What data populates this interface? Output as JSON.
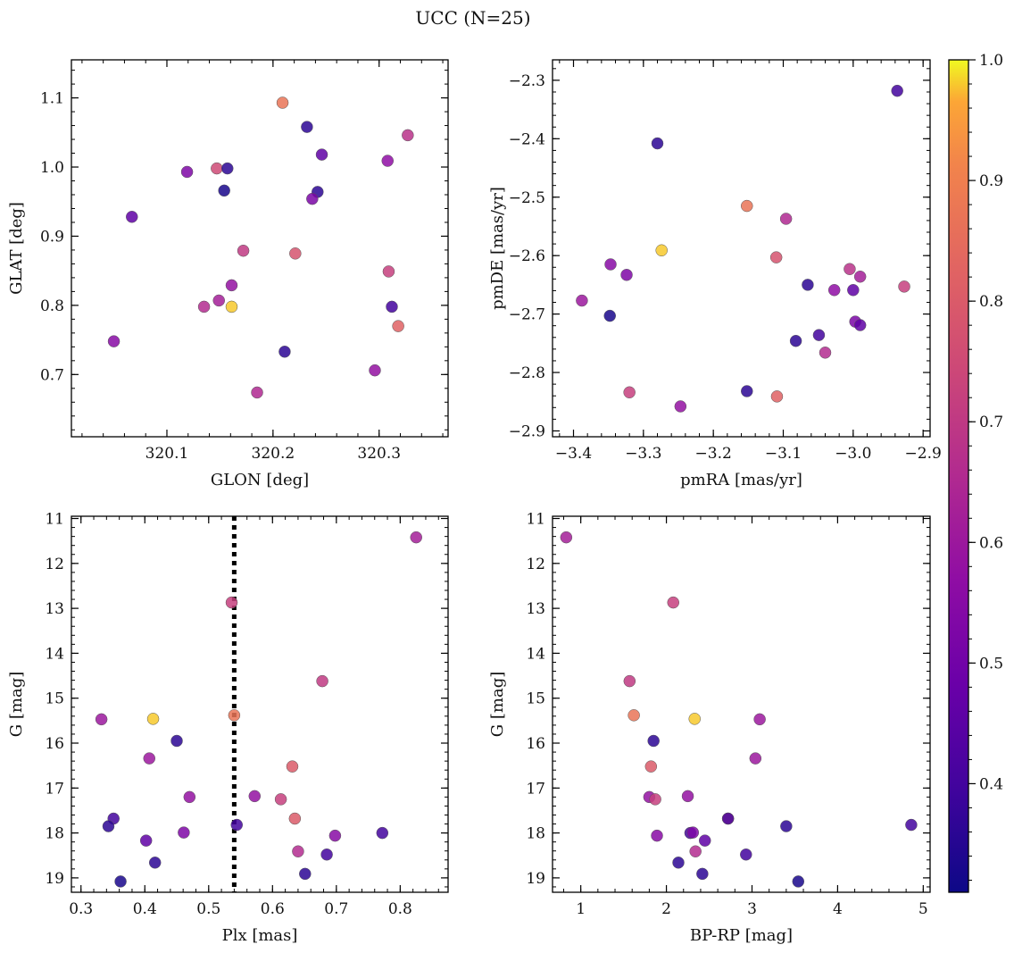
{
  "title": "UCC (N=25)",
  "chart_data": [
    {
      "type": "scatter",
      "xlabel": "GLON [deg]",
      "ylabel": "GLAT [deg]",
      "xlim": [
        320.01,
        320.365
      ],
      "ylim": [
        0.61,
        1.155
      ],
      "xticks": [
        320.1,
        320.2,
        320.3
      ],
      "xtick_labels": [
        "320.1",
        "320.2",
        "320.3"
      ],
      "yticks": [
        0.7,
        0.8,
        0.9,
        1.0,
        1.1
      ],
      "ytick_labels": [
        "0.7",
        "0.8",
        "0.9",
        "1.0",
        "1.1"
      ],
      "y_inverted": false,
      "points": [
        {
          "x": 320.209,
          "y": 1.093,
          "c": 0.87
        },
        {
          "x": 320.232,
          "y": 1.058,
          "c": 0.36
        },
        {
          "x": 320.327,
          "y": 1.046,
          "c": 0.68
        },
        {
          "x": 320.246,
          "y": 1.018,
          "c": 0.46
        },
        {
          "x": 320.308,
          "y": 1.009,
          "c": 0.57
        },
        {
          "x": 320.147,
          "y": 0.998,
          "c": 0.75
        },
        {
          "x": 320.157,
          "y": 0.998,
          "c": 0.36
        },
        {
          "x": 320.119,
          "y": 0.993,
          "c": 0.53
        },
        {
          "x": 320.154,
          "y": 0.966,
          "c": 0.33
        },
        {
          "x": 320.242,
          "y": 0.964,
          "c": 0.36
        },
        {
          "x": 320.237,
          "y": 0.954,
          "c": 0.52
        },
        {
          "x": 320.067,
          "y": 0.928,
          "c": 0.46
        },
        {
          "x": 320.172,
          "y": 0.879,
          "c": 0.7
        },
        {
          "x": 320.221,
          "y": 0.875,
          "c": 0.78
        },
        {
          "x": 320.309,
          "y": 0.849,
          "c": 0.72
        },
        {
          "x": 320.161,
          "y": 0.829,
          "c": 0.58
        },
        {
          "x": 320.149,
          "y": 0.807,
          "c": 0.62
        },
        {
          "x": 320.135,
          "y": 0.798,
          "c": 0.66
        },
        {
          "x": 320.161,
          "y": 0.798,
          "c": 0.98
        },
        {
          "x": 320.312,
          "y": 0.798,
          "c": 0.4
        },
        {
          "x": 320.318,
          "y": 0.77,
          "c": 0.82
        },
        {
          "x": 320.05,
          "y": 0.748,
          "c": 0.55
        },
        {
          "x": 320.211,
          "y": 0.733,
          "c": 0.36
        },
        {
          "x": 320.296,
          "y": 0.706,
          "c": 0.58
        },
        {
          "x": 320.185,
          "y": 0.674,
          "c": 0.65
        }
      ]
    },
    {
      "type": "scatter",
      "xlabel": "pmRA [mas/yr]",
      "ylabel": "pmDE [mas/yr]",
      "xlim": [
        -3.43,
        -2.89
      ],
      "ylim": [
        -2.91,
        -2.265
      ],
      "xticks": [
        -3.4,
        -3.3,
        -3.2,
        -3.1,
        -3.0,
        -2.9
      ],
      "xtick_labels": [
        "−3.4",
        "−3.3",
        "−3.2",
        "−3.1",
        "−3.0",
        "−2.9"
      ],
      "yticks": [
        -2.9,
        -2.8,
        -2.7,
        -2.6,
        -2.5,
        -2.4,
        -2.3
      ],
      "ytick_labels": [
        "−2.9",
        "−2.8",
        "−2.7",
        "−2.6",
        "−2.5",
        "−2.4",
        "−2.3"
      ],
      "y_inverted": false,
      "points": [
        {
          "x": -2.937,
          "y": -2.318,
          "c": 0.4
        },
        {
          "x": -3.28,
          "y": -2.408,
          "c": 0.36
        },
        {
          "x": -3.152,
          "y": -2.515,
          "c": 0.87
        },
        {
          "x": -3.096,
          "y": -2.537,
          "c": 0.65
        },
        {
          "x": -3.274,
          "y": -2.591,
          "c": 0.98
        },
        {
          "x": -3.11,
          "y": -2.603,
          "c": 0.78
        },
        {
          "x": -3.347,
          "y": -2.615,
          "c": 0.55
        },
        {
          "x": -3.005,
          "y": -2.623,
          "c": 0.68
        },
        {
          "x": -3.324,
          "y": -2.633,
          "c": 0.53
        },
        {
          "x": -2.99,
          "y": -2.636,
          "c": 0.62
        },
        {
          "x": -3.065,
          "y": -2.65,
          "c": 0.36
        },
        {
          "x": -2.927,
          "y": -2.653,
          "c": 0.72
        },
        {
          "x": -3.027,
          "y": -2.659,
          "c": 0.57
        },
        {
          "x": -3.0,
          "y": -2.659,
          "c": 0.46
        },
        {
          "x": -3.388,
          "y": -2.677,
          "c": 0.6
        },
        {
          "x": -3.348,
          "y": -2.703,
          "c": 0.33
        },
        {
          "x": -2.997,
          "y": -2.713,
          "c": 0.52
        },
        {
          "x": -2.99,
          "y": -2.719,
          "c": 0.46
        },
        {
          "x": -3.049,
          "y": -2.736,
          "c": 0.4
        },
        {
          "x": -3.082,
          "y": -2.746,
          "c": 0.36
        },
        {
          "x": -3.04,
          "y": -2.766,
          "c": 0.66
        },
        {
          "x": -3.32,
          "y": -2.834,
          "c": 0.72
        },
        {
          "x": -3.152,
          "y": -2.832,
          "c": 0.36
        },
        {
          "x": -3.109,
          "y": -2.841,
          "c": 0.82
        },
        {
          "x": -3.247,
          "y": -2.858,
          "c": 0.58
        }
      ]
    },
    {
      "type": "scatter",
      "xlabel": "Plx [mas]",
      "ylabel": "G [mag]",
      "xlim": [
        0.285,
        0.875
      ],
      "ylim": [
        10.95,
        19.32
      ],
      "xticks": [
        0.3,
        0.4,
        0.5,
        0.6,
        0.7,
        0.8
      ],
      "xtick_labels": [
        "0.3",
        "0.4",
        "0.5",
        "0.6",
        "0.7",
        "0.8"
      ],
      "yticks": [
        11,
        12,
        13,
        14,
        15,
        16,
        17,
        18,
        19
      ],
      "ytick_labels": [
        "11",
        "12",
        "13",
        "14",
        "15",
        "16",
        "17",
        "18",
        "19"
      ],
      "y_inverted": true,
      "vline": 0.54,
      "points": [
        {
          "x": 0.825,
          "y": 11.42,
          "c": 0.62
        },
        {
          "x": 0.536,
          "y": 12.87,
          "c": 0.72
        },
        {
          "x": 0.678,
          "y": 14.62,
          "c": 0.7
        },
        {
          "x": 0.54,
          "y": 15.38,
          "c": 0.87
        },
        {
          "x": 0.332,
          "y": 15.47,
          "c": 0.6
        },
        {
          "x": 0.413,
          "y": 15.46,
          "c": 0.98
        },
        {
          "x": 0.45,
          "y": 15.95,
          "c": 0.36
        },
        {
          "x": 0.407,
          "y": 16.34,
          "c": 0.6
        },
        {
          "x": 0.631,
          "y": 16.52,
          "c": 0.8
        },
        {
          "x": 0.47,
          "y": 17.2,
          "c": 0.58
        },
        {
          "x": 0.572,
          "y": 17.18,
          "c": 0.58
        },
        {
          "x": 0.613,
          "y": 17.25,
          "c": 0.72
        },
        {
          "x": 0.635,
          "y": 17.68,
          "c": 0.8
        },
        {
          "x": 0.351,
          "y": 17.68,
          "c": 0.4
        },
        {
          "x": 0.343,
          "y": 17.85,
          "c": 0.36
        },
        {
          "x": 0.544,
          "y": 17.82,
          "c": 0.4
        },
        {
          "x": 0.772,
          "y": 18.0,
          "c": 0.4
        },
        {
          "x": 0.461,
          "y": 17.99,
          "c": 0.53
        },
        {
          "x": 0.698,
          "y": 18.06,
          "c": 0.55
        },
        {
          "x": 0.402,
          "y": 18.17,
          "c": 0.46
        },
        {
          "x": 0.64,
          "y": 18.41,
          "c": 0.66
        },
        {
          "x": 0.685,
          "y": 18.48,
          "c": 0.4
        },
        {
          "x": 0.416,
          "y": 18.66,
          "c": 0.36
        },
        {
          "x": 0.651,
          "y": 18.91,
          "c": 0.36
        },
        {
          "x": 0.362,
          "y": 19.08,
          "c": 0.33
        }
      ]
    },
    {
      "type": "scatter",
      "xlabel": "BP-RP [mag]",
      "ylabel": "G [mag]",
      "xlim": [
        0.67,
        5.08
      ],
      "ylim": [
        10.95,
        19.32
      ],
      "xticks": [
        1,
        2,
        3,
        4,
        5
      ],
      "xtick_labels": [
        "1",
        "2",
        "3",
        "4",
        "5"
      ],
      "yticks": [
        11,
        12,
        13,
        14,
        15,
        16,
        17,
        18,
        19
      ],
      "ytick_labels": [
        "11",
        "12",
        "13",
        "14",
        "15",
        "16",
        "17",
        "18",
        "19"
      ],
      "y_inverted": true,
      "points": [
        {
          "x": 0.83,
          "y": 11.42,
          "c": 0.62
        },
        {
          "x": 2.08,
          "y": 12.87,
          "c": 0.72
        },
        {
          "x": 1.57,
          "y": 14.62,
          "c": 0.7
        },
        {
          "x": 1.62,
          "y": 15.38,
          "c": 0.87
        },
        {
          "x": 2.33,
          "y": 15.46,
          "c": 0.98
        },
        {
          "x": 3.09,
          "y": 15.47,
          "c": 0.6
        },
        {
          "x": 1.85,
          "y": 15.95,
          "c": 0.36
        },
        {
          "x": 3.04,
          "y": 16.34,
          "c": 0.6
        },
        {
          "x": 1.82,
          "y": 16.52,
          "c": 0.8
        },
        {
          "x": 1.8,
          "y": 17.2,
          "c": 0.58
        },
        {
          "x": 2.25,
          "y": 17.18,
          "c": 0.58
        },
        {
          "x": 1.87,
          "y": 17.25,
          "c": 0.72
        },
        {
          "x": 2.72,
          "y": 17.68,
          "c": 0.8
        },
        {
          "x": 2.72,
          "y": 17.68,
          "c": 0.4
        },
        {
          "x": 3.4,
          "y": 17.85,
          "c": 0.36
        },
        {
          "x": 4.86,
          "y": 17.82,
          "c": 0.4
        },
        {
          "x": 2.28,
          "y": 18.0,
          "c": 0.4
        },
        {
          "x": 2.31,
          "y": 17.99,
          "c": 0.53
        },
        {
          "x": 1.89,
          "y": 18.06,
          "c": 0.55
        },
        {
          "x": 2.45,
          "y": 18.17,
          "c": 0.46
        },
        {
          "x": 2.34,
          "y": 18.41,
          "c": 0.66
        },
        {
          "x": 2.93,
          "y": 18.48,
          "c": 0.4
        },
        {
          "x": 2.14,
          "y": 18.66,
          "c": 0.36
        },
        {
          "x": 2.42,
          "y": 18.91,
          "c": 0.36
        },
        {
          "x": 3.54,
          "y": 19.08,
          "c": 0.33
        }
      ]
    }
  ],
  "colorbar": {
    "colormap": "plasma",
    "range": [
      0.31,
      1.0
    ],
    "ticks": [
      0.4,
      0.5,
      0.6,
      0.7,
      0.8,
      0.9,
      1.0
    ],
    "tick_labels": [
      "0.4",
      "0.5",
      "0.6",
      "0.7",
      "0.8",
      "0.9",
      "1.0"
    ]
  }
}
